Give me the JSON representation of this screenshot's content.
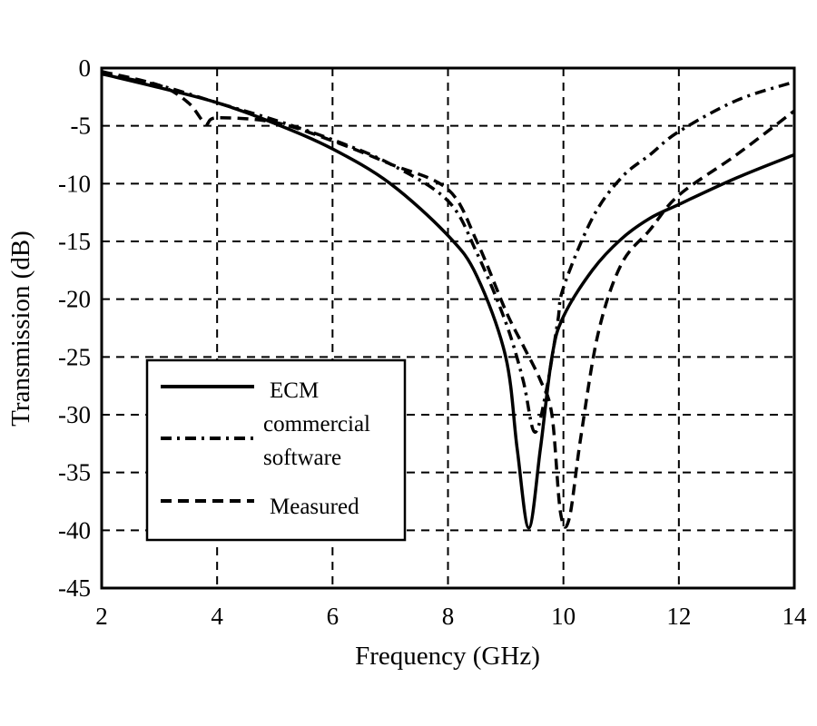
{
  "chart_data": {
    "type": "line",
    "title": "",
    "xlabel": "Frequency (GHz)",
    "ylabel": "Transmission (dB)",
    "xlim": [
      2,
      14
    ],
    "ylim": [
      -45,
      0
    ],
    "xticks": [
      2,
      4,
      6,
      8,
      10,
      12,
      14
    ],
    "yticks": [
      0,
      -5,
      -10,
      -15,
      -20,
      -25,
      -30,
      -35,
      -40,
      -45
    ],
    "grid": true,
    "legend_position": "lower-left (inside plot)",
    "series": [
      {
        "name": "ECM",
        "style": "solid",
        "x": [
          2,
          3,
          4,
          5,
          6,
          7,
          8,
          8.5,
          9,
          9.2,
          9.4,
          9.6,
          9.8,
          10,
          10.5,
          11,
          11.5,
          12,
          13,
          14
        ],
        "y": [
          -0.5,
          -1.7,
          -3,
          -4.8,
          -7,
          -10,
          -14.5,
          -18,
          -25,
          -33,
          -39.8,
          -33,
          -25,
          -21.5,
          -17.5,
          -14.8,
          -13,
          -11.8,
          -9.5,
          -7.5
        ]
      },
      {
        "name": "commercial software",
        "style": "dash-dot",
        "x": [
          2,
          3,
          4,
          5,
          6,
          7,
          8,
          8.5,
          9,
          9.3,
          9.5,
          9.7,
          9.9,
          10,
          10.5,
          11,
          11.5,
          12,
          13,
          14
        ],
        "y": [
          -0.5,
          -1.5,
          -3,
          -4.5,
          -6.2,
          -8.3,
          -11.5,
          -16,
          -22,
          -27,
          -31.5,
          -28,
          -22,
          -19,
          -13,
          -9.5,
          -7.5,
          -5.5,
          -2.8,
          -1.2
        ]
      },
      {
        "name": "Measured",
        "style": "dashed",
        "x": [
          2,
          3,
          3.5,
          3.8,
          4,
          5,
          6,
          7,
          8,
          8.5,
          9,
          9.3,
          9.6,
          9.8,
          9.95,
          10.1,
          10.3,
          10.6,
          11,
          11.5,
          12,
          13,
          14
        ],
        "y": [
          -0.3,
          -1.5,
          -3,
          -4.8,
          -4.3,
          -4.7,
          -6.3,
          -8.3,
          -10.5,
          -15,
          -21,
          -24,
          -27,
          -30,
          -38.5,
          -39,
          -32,
          -23,
          -17,
          -14,
          -11,
          -7.5,
          -3.7
        ]
      }
    ]
  },
  "legend": {
    "items": [
      {
        "label_lines": [
          "ECM"
        ],
        "style": "solid"
      },
      {
        "label_lines": [
          "commercial",
          "software"
        ],
        "style": "dash-dot"
      },
      {
        "label_lines": [
          "Measured"
        ],
        "style": "dashed"
      }
    ]
  },
  "colors": {
    "line": "#000000",
    "grid": "#000000",
    "background": "#ffffff"
  }
}
